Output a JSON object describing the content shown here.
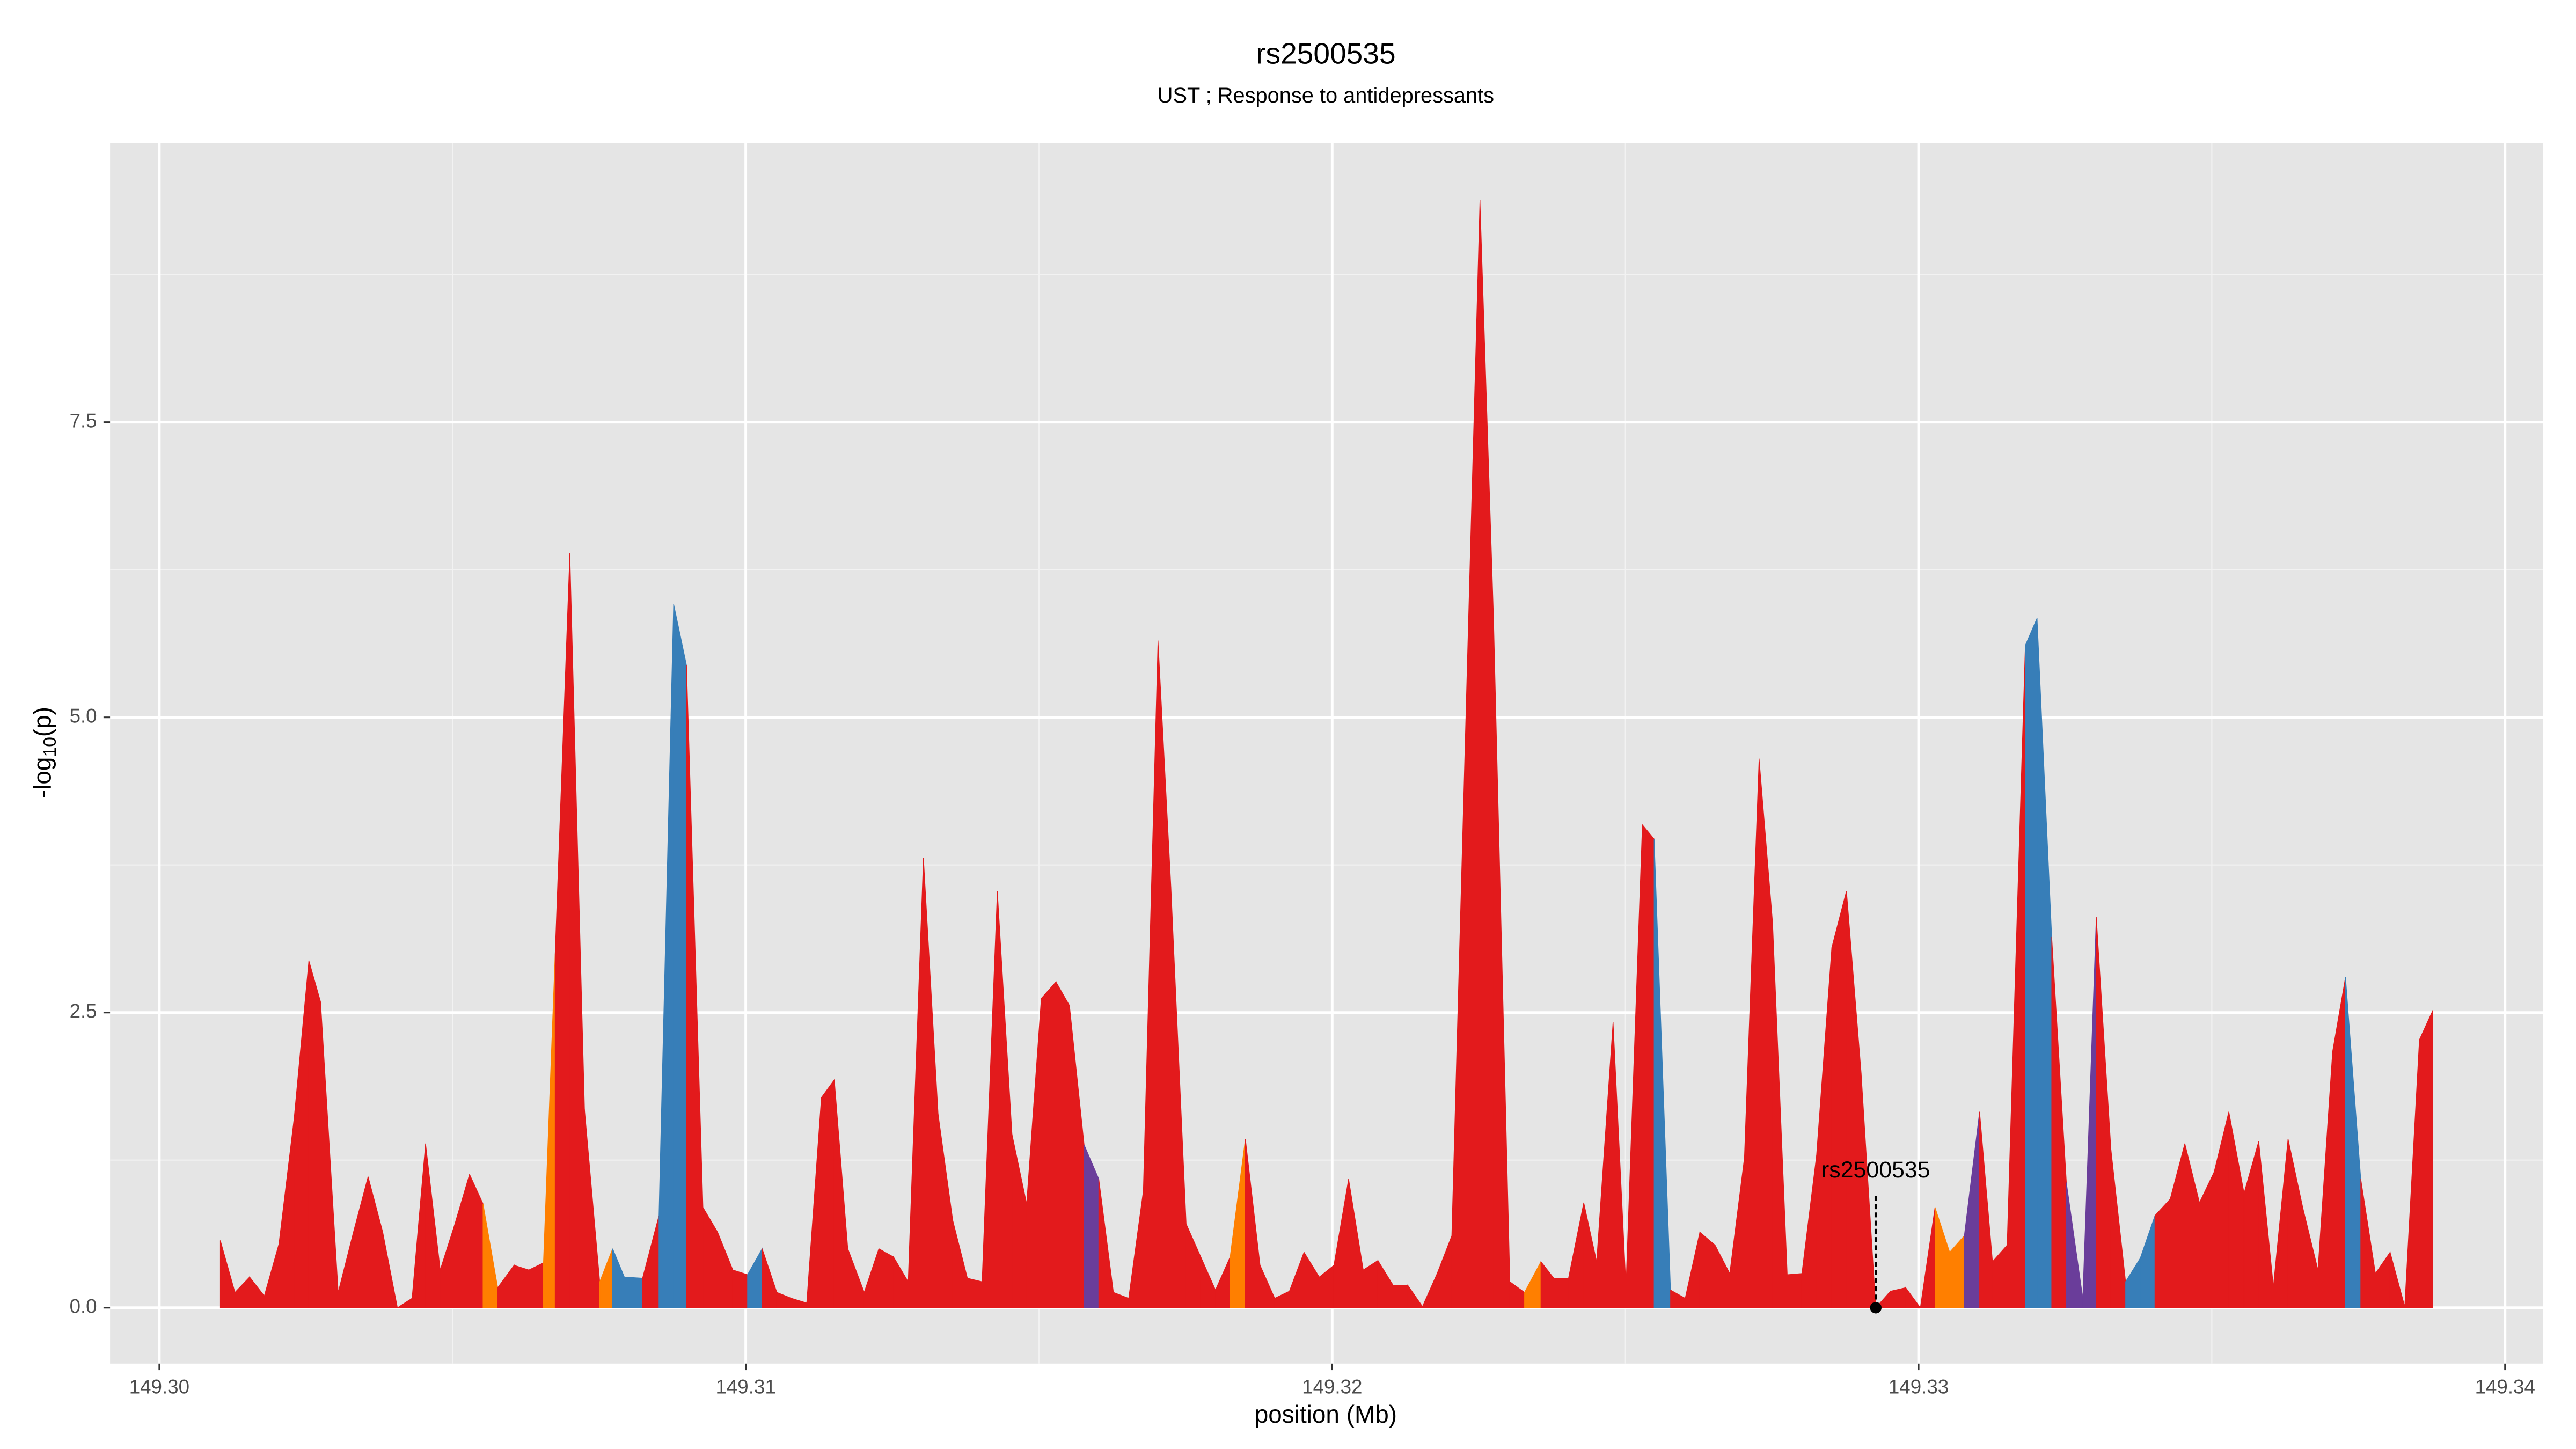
{
  "chart_data": {
    "type": "area",
    "title": "rs2500535",
    "subtitle": "UST ; Response to antidepressants",
    "xlabel": "position (Mb)",
    "ylabel": {
      "text": "-log",
      "subscript": "10",
      "suffix": "(p)"
    },
    "xlim": [
      149.29916,
      149.34065
    ],
    "ylim": [
      -0.473,
      9.865
    ],
    "xticks": [
      {
        "value": 149.3,
        "label": "149.30"
      },
      {
        "value": 149.31,
        "label": "149.31"
      },
      {
        "value": 149.32,
        "label": "149.32"
      },
      {
        "value": 149.33,
        "label": "149.33"
      },
      {
        "value": 149.34,
        "label": "149.34"
      }
    ],
    "yticks": [
      {
        "value": 0,
        "label": "0.0"
      },
      2.5,
      {
        "value": 5,
        "label": "5.0"
      },
      7.5
    ],
    "x_minor_grid": [
      149.305,
      149.315,
      149.325,
      149.335
    ],
    "y_minor_grid": [
      1.25,
      3.75,
      6.25,
      8.75
    ],
    "grid": true,
    "panel_color": "#e5e5e5",
    "series": [
      {
        "x": [
          149.30104,
          149.30129,
          149.30154,
          149.30179,
          149.30204,
          149.3023,
          149.30255,
          149.30275,
          149.30305,
          149.30331,
          149.30356,
          149.30381,
          149.30406,
          149.30431,
          149.30454,
          149.30479,
          149.30504,
          149.30529,
          149.30552,
          149.30577,
          149.30605,
          149.3063,
          149.30655,
          149.30675,
          149.307,
          149.30725,
          149.30751,
          149.30773,
          149.30793,
          149.30824,
          149.30852,
          149.30877,
          149.30899,
          149.30927,
          149.30952,
          149.30978,
          149.31003,
          149.31028,
          149.31053,
          149.31078,
          149.31104,
          149.31129,
          149.31151,
          149.31174,
          149.31202,
          149.31227,
          149.31252,
          149.31277,
          149.31303,
          149.31328,
          149.31353,
          149.31378,
          149.31403,
          149.31429,
          149.31454,
          149.31479,
          149.31504,
          149.31529,
          149.31552,
          149.31577,
          149.31602,
          149.31627,
          149.31653,
          149.31678,
          149.31703,
          149.31725,
          149.31751,
          149.31776,
          149.31801,
          149.31826,
          149.31852,
          149.31877,
          149.31902,
          149.31927,
          149.31952,
          149.31978,
          149.32003,
          149.32028,
          149.32053,
          149.32078,
          149.32104,
          149.32129,
          149.32154,
          149.32179,
          149.32204,
          149.32252,
          149.32275,
          149.32303,
          149.32328,
          149.32356,
          149.32378,
          149.32403,
          149.32429,
          149.32451,
          149.32479,
          149.32501,
          149.32529,
          149.32549,
          149.32577,
          149.32602,
          149.32627,
          149.32653,
          149.32678,
          149.32703,
          149.32728,
          149.32751,
          149.32776,
          149.32801,
          149.32826,
          149.32852,
          149.32877,
          149.32902,
          149.32927,
          149.32952,
          149.32978,
          149.33003,
          149.33028,
          149.33053,
          149.33078,
          149.33104,
          149.33126,
          149.33151,
          149.33182,
          149.33202,
          149.33227,
          149.33252,
          149.3328,
          149.33303,
          149.33328,
          149.33353,
          149.33378,
          149.33403,
          149.33429,
          149.33454,
          149.33479,
          149.33504,
          149.33529,
          149.33555,
          149.3358,
          149.33605,
          149.3363,
          149.33655,
          149.33681,
          149.33706,
          149.33728,
          149.33754,
          149.33779,
          149.33804,
          149.33829,
          149.33854,
          149.33877
        ],
        "values": [
          0.57,
          0.13,
          0.26,
          0.1,
          0.54,
          1.61,
          2.94,
          2.59,
          0.13,
          0.64,
          1.11,
          0.64,
          0,
          0.08,
          1.39,
          0.32,
          0.71,
          1.13,
          0.88,
          0.17,
          0.36,
          0.32,
          0.38,
          3.0,
          6.39,
          1.68,
          0.22,
          0.5,
          0.26,
          0.25,
          0.78,
          5.96,
          5.44,
          0.85,
          0.64,
          0.32,
          0.28,
          0.5,
          0.13,
          0.08,
          0.04,
          1.78,
          1.93,
          0.5,
          0.13,
          0.5,
          0.43,
          0.22,
          3.81,
          1.64,
          0.74,
          0.25,
          0.22,
          3.53,
          1.47,
          0.88,
          2.62,
          2.76,
          2.56,
          1.38,
          1.09,
          0.13,
          0.08,
          0.99,
          5.65,
          3.56,
          0.71,
          0.43,
          0.15,
          0.43,
          1.43,
          0.36,
          0.08,
          0.14,
          0.47,
          0.26,
          0.36,
          1.09,
          0.32,
          0.4,
          0.19,
          0.19,
          0.01,
          0.29,
          0.61,
          9.38,
          5.86,
          0.22,
          0.13,
          0.39,
          0.25,
          0.25,
          0.89,
          0.39,
          2.42,
          0.18,
          4.09,
          3.97,
          0.15,
          0.08,
          0.64,
          0.53,
          0.29,
          1.27,
          4.65,
          3.26,
          0.28,
          0.29,
          1.29,
          3.05,
          3.53,
          1.99,
          0,
          0.14,
          0.17,
          0,
          0.85,
          0.47,
          0.61,
          1.66,
          0.39,
          0.53,
          5.61,
          5.84,
          3.14,
          1.06,
          0.08,
          3.31,
          1.34,
          0.22,
          0.42,
          0.78,
          0.92,
          1.39,
          0.89,
          1.15,
          1.66,
          0.97,
          1.41,
          0.18,
          1.43,
          0.85,
          0.32,
          2.17,
          2.8,
          1.09,
          0.29,
          0.47,
          0.01,
          2.27,
          2.52
        ],
        "colors": [
          "#e31a1c",
          "#e31a1c",
          "#e31a1c",
          "#e31a1c",
          "#e31a1c",
          "#e31a1c",
          "#e31a1c",
          "#e31a1c",
          "#e31a1c",
          "#e31a1c",
          "#e31a1c",
          "#e31a1c",
          "#e31a1c",
          "#e31a1c",
          "#e31a1c",
          "#e31a1c",
          "#e31a1c",
          "#e31a1c",
          "#e31a1c",
          "#ff7f00",
          "#e31a1c",
          "#e31a1c",
          "#e31a1c",
          "#ff7f00",
          "#e31a1c",
          "#e31a1c",
          "#e31a1c",
          "#ff7f00",
          "#377eb8",
          "#377eb8",
          "#e31a1c",
          "#377eb8",
          "#377eb8",
          "#e31a1c",
          "#e31a1c",
          "#e31a1c",
          "#e31a1c",
          "#377eb8",
          "#e31a1c",
          "#e31a1c",
          "#e31a1c",
          "#e31a1c",
          "#e31a1c",
          "#e31a1c",
          "#e31a1c",
          "#e31a1c",
          "#e31a1c",
          "#e31a1c",
          "#e31a1c",
          "#e31a1c",
          "#e31a1c",
          "#e31a1c",
          "#e31a1c",
          "#e31a1c",
          "#e31a1c",
          "#e31a1c",
          "#e31a1c",
          "#e31a1c",
          "#e31a1c",
          "#e31a1c",
          "#6a3d9a",
          "#e31a1c",
          "#e31a1c",
          "#e31a1c",
          "#e31a1c",
          "#e31a1c",
          "#e31a1c",
          "#e31a1c",
          "#e31a1c",
          "#e31a1c",
          "#ff7f00",
          "#e31a1c",
          "#e31a1c",
          "#e31a1c",
          "#e31a1c",
          "#e31a1c",
          "#e31a1c",
          "#e31a1c",
          "#e31a1c",
          "#e31a1c",
          "#e31a1c",
          "#e31a1c",
          "#e31a1c",
          "#e31a1c",
          "#e31a1c",
          "#e31a1c",
          "#e31a1c",
          "#e31a1c",
          "#e31a1c",
          "#ff7f00",
          "#e31a1c",
          "#e31a1c",
          "#e31a1c",
          "#e31a1c",
          "#e31a1c",
          "#e31a1c",
          "#e31a1c",
          "#e31a1c",
          "#377eb8",
          "#e31a1c",
          "#e31a1c",
          "#e31a1c",
          "#e31a1c",
          "#e31a1c",
          "#e31a1c",
          "#e31a1c",
          "#e31a1c",
          "#e31a1c",
          "#e31a1c",
          "#e31a1c",
          "#e31a1c",
          "#e31a1c",
          "#e31a1c",
          "#e31a1c",
          "#e31a1c",
          "#e31a1c",
          "#e31a1c",
          "#ff7f00",
          "#ff7f00",
          "#6a3d9a",
          "#e31a1c",
          "#e31a1c",
          "#e31a1c",
          "#377eb8",
          "#377eb8",
          "#e31a1c",
          "#6a3d9a",
          "#6a3d9a",
          "#e31a1c",
          "#e31a1c",
          "#377eb8",
          "#377eb8",
          "#e31a1c",
          "#e31a1c",
          "#e31a1c",
          "#e31a1c",
          "#e31a1c",
          "#e31a1c",
          "#e31a1c",
          "#e31a1c",
          "#e31a1c",
          "#e31a1c",
          "#e31a1c",
          "#e31a1c",
          "#e31a1c",
          "#377eb8",
          "#e31a1c",
          "#e31a1c",
          "#e31a1c",
          "#e31a1c",
          "#e31a1c"
        ]
      }
    ],
    "annotation": {
      "label": "rs2500535",
      "x": 149.32927,
      "y": 0
    }
  }
}
